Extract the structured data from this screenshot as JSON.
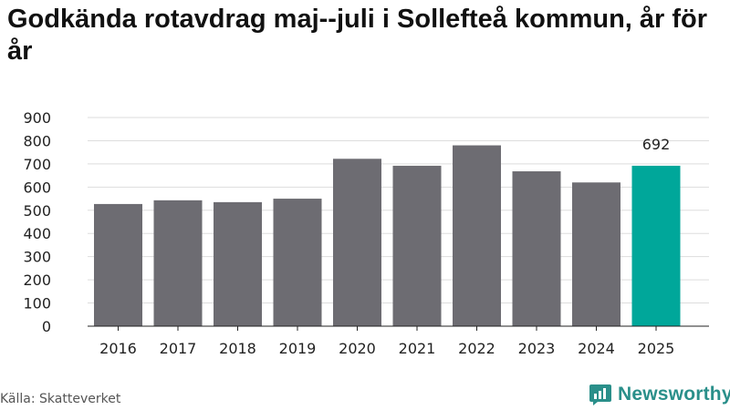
{
  "title": "Godkända rotavdrag maj--juli i Sollefteå kommun, år för år",
  "source": "Källa: Skatteverket",
  "brand": {
    "name": "Newsworthy",
    "icon": "newsworthy-logo-icon",
    "color": "#2a8f8a"
  },
  "colors": {
    "bar": "#6d6c72",
    "highlight": "#00a79a",
    "grid": "#dddddd",
    "axis": "#222222"
  },
  "chart_data": {
    "type": "bar",
    "title": "Godkända rotavdrag maj--juli i Sollefteå kommun, år för år",
    "xlabel": "",
    "ylabel": "",
    "categories": [
      "2016",
      "2017",
      "2018",
      "2019",
      "2020",
      "2021",
      "2022",
      "2023",
      "2024",
      "2025"
    ],
    "values": [
      527,
      543,
      535,
      550,
      722,
      692,
      780,
      668,
      620,
      692
    ],
    "ylim": [
      0,
      900
    ],
    "yticks": [
      0,
      100,
      200,
      300,
      400,
      500,
      600,
      700,
      800,
      900
    ],
    "grid": true,
    "highlight_index": 9,
    "annotations": [
      {
        "category": "2025",
        "text": "692"
      }
    ]
  }
}
